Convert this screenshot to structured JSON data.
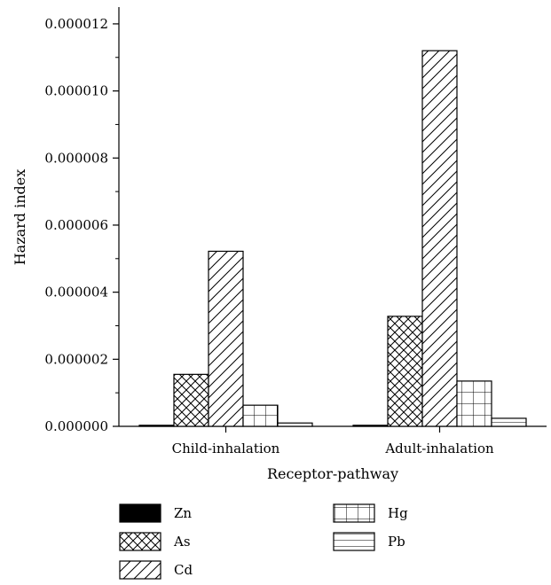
{
  "chart_data": {
    "type": "bar",
    "title": "",
    "xlabel": "Receptor-pathway",
    "ylabel": "Hazard index",
    "categories": [
      "Child-inhalation",
      "Adult-inhalation"
    ],
    "ylim": [
      0,
      1.25e-05
    ],
    "yticks": [
      "0.000000",
      "0.000002",
      "0.000004",
      "0.000006",
      "0.000008",
      "0.000010",
      "0.000012"
    ],
    "ytick_values": [
      0,
      2e-06,
      4e-06,
      6e-06,
      8e-06,
      1e-05,
      1.2e-05
    ],
    "grid": false,
    "legend_position": "bottom",
    "series": [
      {
        "name": "Zn",
        "pattern": "solid",
        "values": [
          3e-08,
          3e-08
        ]
      },
      {
        "name": "As",
        "pattern": "crosshatch",
        "values": [
          1.55e-06,
          3.28e-06
        ]
      },
      {
        "name": "Cd",
        "pattern": "diagonal",
        "values": [
          5.22e-06,
          1.12e-05
        ]
      },
      {
        "name": "Hg",
        "pattern": "grid",
        "values": [
          6.3e-07,
          1.35e-06
        ]
      },
      {
        "name": "Pb",
        "pattern": "horizontal",
        "values": [
          1e-07,
          2.4e-07
        ]
      }
    ]
  }
}
